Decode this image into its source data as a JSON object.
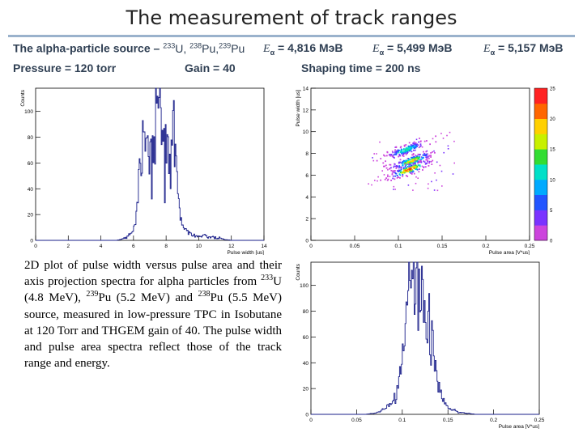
{
  "slide": {
    "title": "The measurement of track ranges",
    "source_label": "The alpha-particle source –",
    "iso1_mass": "233",
    "iso1_sym": "U,",
    "iso2_mass": "238",
    "iso2_sym": "Pu,",
    "iso3_mass": "239",
    "iso3_sym": "Pu",
    "e_symbol": "E",
    "e_sub": "α",
    "e1": "= 4,816 МэВ",
    "e2": "= 5,499 МэВ",
    "e3": "= 5,157 МэВ",
    "pressure": "Pressure = 120 torr",
    "gain": "Gain = 40",
    "shaping": "Shaping time = 200 ns"
  },
  "caption": {
    "p1": "2D plot of pulse width versus pulse area and their axis projection spectra for alpha particles from ",
    "m1": "233",
    "p2": "U (4.8 MeV), ",
    "m2": "239",
    "p3": "Pu (5.2 MeV) and ",
    "m3": "238",
    "p4": "Pu (5.5 MeV) source, measured in low-pressure TPC in Isobutane at 120 Torr and THGEM gain of 40. The pulse width and pulse area spectra reflect those of the track range and energy."
  },
  "chart_data": [
    {
      "type": "histogram",
      "name": "pulse-width-spectrum",
      "xlabel": "Pulse width [us]",
      "ylabel": "Counts",
      "xlim": [
        0,
        14
      ],
      "ylim": [
        0,
        118
      ],
      "xticks": [
        "0",
        "2",
        "4",
        "6",
        "8",
        "10",
        "12",
        "14"
      ],
      "yticks": [
        "0",
        "20",
        "40",
        "60",
        "80",
        "100"
      ],
      "x": [
        5.0,
        5.5,
        6.0,
        6.2,
        6.4,
        6.6,
        6.8,
        7.0,
        7.2,
        7.4,
        7.6,
        7.8,
        8.0,
        8.2,
        8.4,
        8.6,
        8.8,
        9.0,
        9.2,
        9.5,
        10.0,
        10.5,
        11.0,
        11.5,
        12.0
      ],
      "values": [
        0,
        2,
        8,
        22,
        60,
        95,
        88,
        70,
        55,
        95,
        112,
        80,
        48,
        60,
        80,
        65,
        30,
        14,
        8,
        5,
        3,
        3,
        2,
        1,
        0
      ]
    },
    {
      "type": "heatmap",
      "name": "pulse-width-vs-pulse-area",
      "xlabel": "Pulse area [V*us]",
      "ylabel": "Pulse width [us]",
      "xlim": [
        0,
        0.25
      ],
      "ylim": [
        0,
        14
      ],
      "xticks": [
        "0",
        "0.05",
        "0.1",
        "0.15",
        "0.2",
        "0.25"
      ],
      "yticks": [
        "0",
        "2",
        "4",
        "6",
        "8",
        "10",
        "12",
        "14"
      ],
      "colorbar_range": [
        0,
        25
      ],
      "colorbar_ticks": [
        "0",
        "5",
        "10",
        "15",
        "20",
        "25"
      ],
      "clusters": [
        {
          "x": 0.108,
          "y": 8.4,
          "peak": 12
        },
        {
          "x": 0.115,
          "y": 7.4,
          "peak": 18
        },
        {
          "x": 0.112,
          "y": 6.6,
          "peak": 22
        }
      ]
    },
    {
      "type": "histogram",
      "name": "pulse-area-spectrum",
      "xlabel": "Pulse area [V*us]",
      "ylabel": "Counts",
      "xlim": [
        0,
        0.25
      ],
      "ylim": [
        0,
        118
      ],
      "xticks": [
        "0",
        "0.05",
        "0.1",
        "0.15",
        "0.2",
        "0.25"
      ],
      "yticks": [
        "0",
        "20",
        "40",
        "60",
        "80",
        "100"
      ],
      "x": [
        0.06,
        0.07,
        0.08,
        0.09,
        0.095,
        0.1,
        0.105,
        0.11,
        0.115,
        0.12,
        0.125,
        0.13,
        0.135,
        0.14,
        0.145,
        0.15,
        0.16,
        0.17,
        0.18
      ],
      "values": [
        0,
        1,
        3,
        10,
        22,
        45,
        78,
        105,
        110,
        98,
        80,
        60,
        38,
        20,
        10,
        5,
        2,
        1,
        0
      ]
    }
  ]
}
